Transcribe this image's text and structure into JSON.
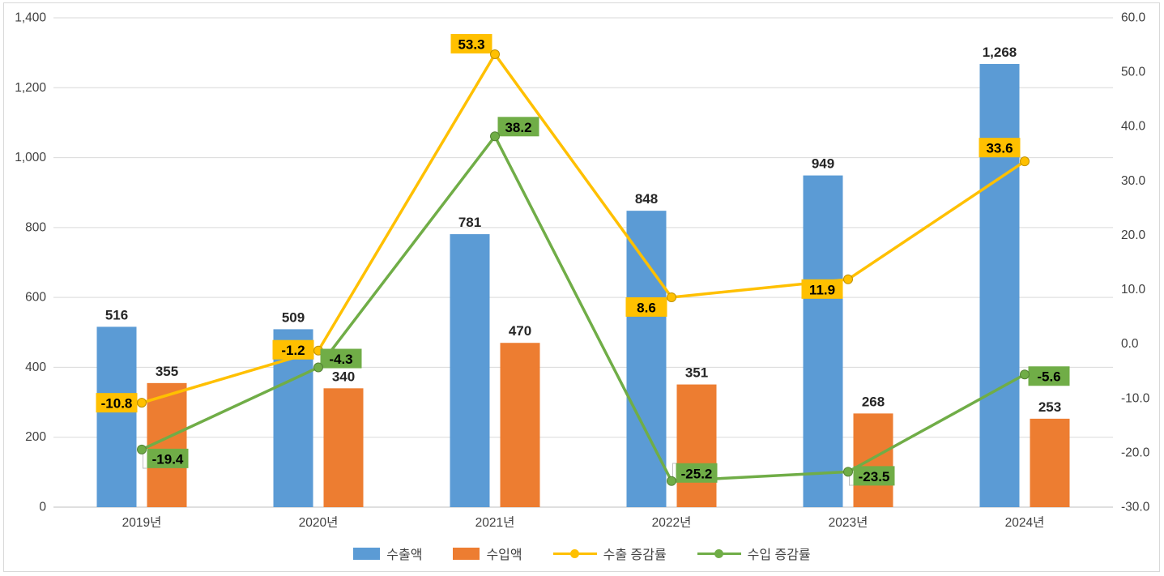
{
  "chart_data": {
    "type": "combo-bar-line",
    "title": "",
    "categories": [
      "2019년",
      "2020년",
      "2021년",
      "2022년",
      "2023년",
      "2024년"
    ],
    "series": [
      {
        "name": "수출액",
        "key": "export-amount",
        "type": "bar",
        "axis": "left",
        "color": "#5B9BD5",
        "values": [
          516,
          509,
          781,
          848,
          949,
          1268
        ],
        "labels": [
          "516",
          "509",
          "781",
          "848",
          "949",
          "1,268"
        ]
      },
      {
        "name": "수입액",
        "key": "import-amount",
        "type": "bar",
        "axis": "left",
        "color": "#ED7D31",
        "values": [
          355,
          340,
          470,
          351,
          268,
          253
        ],
        "labels": [
          "355",
          "340",
          "470",
          "351",
          "268",
          "253"
        ]
      },
      {
        "name": "수출 증감률",
        "key": "export-growth-rate",
        "type": "line",
        "axis": "right",
        "color": "#FFC000",
        "marker_stroke": "#BF9000",
        "values": [
          -10.8,
          -1.2,
          53.3,
          8.6,
          11.9,
          33.6
        ],
        "labels": [
          "-10.8",
          "-1.2",
          "53.3",
          "8.6",
          "11.9",
          "33.6"
        ]
      },
      {
        "name": "수입 증감률",
        "key": "import-growth-rate",
        "type": "line",
        "axis": "right",
        "color": "#70AD47",
        "marker_stroke": "#548235",
        "values": [
          -19.4,
          -4.3,
          38.2,
          -25.2,
          -23.5,
          -5.6
        ],
        "labels": [
          "-19.4",
          "-4.3",
          "38.2",
          "-25.2",
          "-23.5",
          "-5.6"
        ]
      }
    ],
    "left_axis": {
      "min": 0,
      "max": 1400,
      "step": 200,
      "tick_labels": [
        "0",
        "200",
        "400",
        "600",
        "800",
        "1,000",
        "1,200",
        "1,400"
      ]
    },
    "right_axis": {
      "min": -30,
      "max": 60,
      "step": 10,
      "tick_labels": [
        "-30.0",
        "-20.0",
        "-10.0",
        "0.0",
        "10.0",
        "20.0",
        "30.0",
        "40.0",
        "50.0",
        "60.0"
      ]
    },
    "legend": [
      "수출액",
      "수입액",
      "수출 증감률",
      "수입 증감률"
    ],
    "grid": true,
    "legend_position": "bottom",
    "colors": {
      "gridline": "#D9D9D9",
      "axis_line": "#BFBFBF",
      "leader_line": "#BFBFBF",
      "tick_text": "#404040",
      "label_text": "#262626",
      "background": "#FFFFFF",
      "border": "#D9D9D9"
    }
  }
}
